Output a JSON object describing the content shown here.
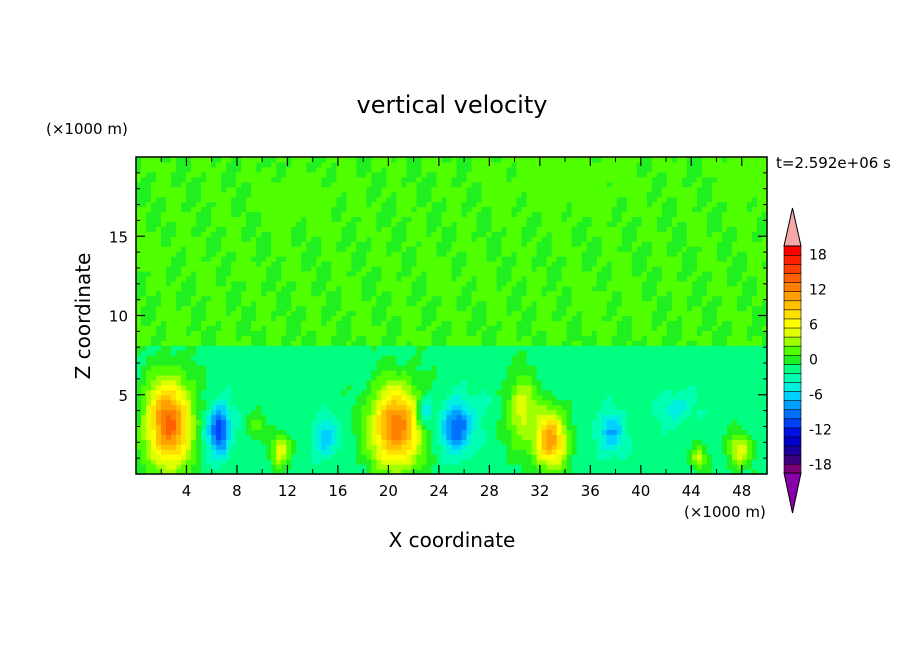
{
  "chart_data": {
    "type": "heatmap",
    "title": "vertical velocity",
    "xlabel": "X coordinate",
    "ylabel": "Z coordinate",
    "x_unit": "(×1000 m)",
    "y_unit": "(×1000 m)",
    "time_label": "t=2.592e+06 s",
    "xlim": [
      0,
      50
    ],
    "ylim": [
      0,
      20
    ],
    "x_ticks": [
      4,
      8,
      12,
      16,
      20,
      24,
      28,
      32,
      36,
      40,
      44,
      48
    ],
    "y_ticks": [
      5,
      10,
      15
    ],
    "colorbar": {
      "levels": [
        -21,
        -19.5,
        -18,
        -16.5,
        -15,
        -13.5,
        -12,
        -10.5,
        -9,
        -7.5,
        -6,
        -4.5,
        -3,
        -1.5,
        0,
        1.5,
        3,
        4.5,
        6,
        7.5,
        9,
        10.5,
        12,
        13.5,
        15,
        16.5,
        18,
        19.5,
        21
      ],
      "tick_labels": [
        18,
        12,
        6,
        0,
        -6,
        -12,
        -18
      ],
      "colors": [
        "#7a007a",
        "#3a0080",
        "#1a00a0",
        "#0000c8",
        "#0010e0",
        "#0040ff",
        "#0070ff",
        "#00a0ff",
        "#00d0ff",
        "#00f0e0",
        "#00ffb0",
        "#00ff80",
        "#20f020",
        "#50ff00",
        "#a0ff00",
        "#e0ff00",
        "#ffff00",
        "#ffe000",
        "#ffc000",
        "#ffa000",
        "#ff8000",
        "#ff6000",
        "#ff4000",
        "#ff2000",
        "#ff0000"
      ],
      "overflow_high": "#f4a8a8",
      "overflow_low": "#8a00aa"
    },
    "field": {
      "background": 0.8,
      "layers": [
        {
          "z0": 0,
          "z1": 8,
          "value": -1.5
        },
        {
          "z0": 8,
          "z1": 14,
          "value": 0.8
        }
      ],
      "updrafts": [
        {
          "x": 2.6,
          "z": 3.2,
          "sx": 1.8,
          "sz": 2.8,
          "value": 13.5
        },
        {
          "x": 20.6,
          "z": 3.0,
          "sx": 2.0,
          "sz": 2.6,
          "value": 12.8
        },
        {
          "x": 32.8,
          "z": 2.2,
          "sx": 1.3,
          "sz": 1.8,
          "value": 11.0
        },
        {
          "x": 30.6,
          "z": 4.0,
          "sx": 1.2,
          "sz": 2.2,
          "value": 5.0
        },
        {
          "x": 11.5,
          "z": 1.5,
          "sx": 0.8,
          "sz": 1.0,
          "value": 4.5
        },
        {
          "x": 47.8,
          "z": 1.5,
          "sx": 0.9,
          "sz": 1.0,
          "value": 5.0
        },
        {
          "x": 44.6,
          "z": 1.0,
          "sx": 0.6,
          "sz": 0.7,
          "value": 4.0
        },
        {
          "x": 9.5,
          "z": 3.0,
          "sx": 0.6,
          "sz": 0.8,
          "value": 2.0
        }
      ],
      "downdrafts": [
        {
          "x": 6.6,
          "z": 2.8,
          "sx": 0.9,
          "sz": 1.6,
          "value": -11.5
        },
        {
          "x": 25.4,
          "z": 3.0,
          "sx": 1.2,
          "sz": 1.6,
          "value": -10.5
        },
        {
          "x": 15.0,
          "z": 2.3,
          "sx": 0.9,
          "sz": 1.2,
          "value": -7.0
        },
        {
          "x": 37.6,
          "z": 2.6,
          "sx": 1.1,
          "sz": 1.3,
          "value": -7.0
        },
        {
          "x": 42.8,
          "z": 4.2,
          "sx": 1.3,
          "sz": 1.0,
          "value": -5.0
        },
        {
          "x": 23.0,
          "z": 4.0,
          "sx": 0.6,
          "sz": 1.0,
          "value": -5.0
        },
        {
          "x": 27.6,
          "z": 4.5,
          "sx": 0.6,
          "sz": 0.8,
          "value": -4.0
        }
      ],
      "upper_green": [
        {
          "x": 13.0,
          "z": 17.5,
          "sx": 3.0,
          "sz": 1.3,
          "value": 1.2
        },
        {
          "x": 34.0,
          "z": 18.5,
          "sx": 5.0,
          "sz": 1.8,
          "value": 1.2
        },
        {
          "x": 48.5,
          "z": 18.5,
          "sx": 1.8,
          "sz": 1.5,
          "value": 1.2
        },
        {
          "x": 2.0,
          "z": 14.0,
          "sx": 1.5,
          "sz": 0.8,
          "value": 1.0
        },
        {
          "x": 8.0,
          "z": 13.0,
          "sx": 2.0,
          "sz": 0.8,
          "value": 0.9
        },
        {
          "x": 25.0,
          "z": 12.5,
          "sx": 3.5,
          "sz": 1.4,
          "value": 0.9
        },
        {
          "x": 37.0,
          "z": 11.0,
          "sx": 3.0,
          "sz": 1.6,
          "value": 0.9
        }
      ]
    }
  }
}
